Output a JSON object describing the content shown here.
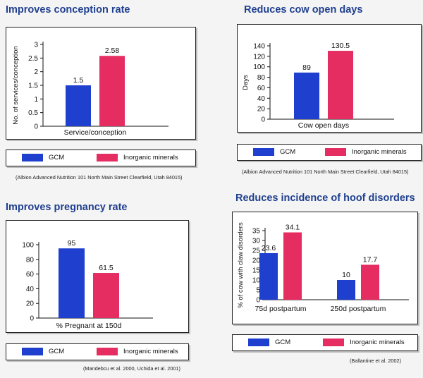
{
  "colors": {
    "gcm": "#1f3fcf",
    "inorganic": "#e52d62"
  },
  "legend": {
    "gcm_label": "GCM",
    "inorganic_label": "Inorganic minerals"
  },
  "credits": {
    "top_left": "(Albion Advanced Nutrition 101 North Main Street Clearfield, Utah 84015)",
    "top_right": "(Albion Advanced Nutrition 101 North Main Street Clearfield, Utah 84015)",
    "bottom_left": "(Mandebcu et al. 2000, Uchida et al. 2001)",
    "bottom_right": "(Ballantine et al. 2002)"
  },
  "chart_data": [
    {
      "type": "bar",
      "title": "Improves conception rate",
      "categories": [
        "Service/conception"
      ],
      "series": [
        {
          "name": "GCM",
          "values": [
            1.5
          ],
          "labels": [
            "1.5"
          ]
        },
        {
          "name": "Inorganic minerals",
          "values": [
            2.58
          ],
          "labels": [
            "2.58"
          ]
        }
      ],
      "xlabel": "",
      "ylabel": "No. of services/conception",
      "ylim": [
        0,
        3
      ],
      "yticks": [
        "0",
        "0.5",
        "1",
        "1.5",
        "2",
        "2.5",
        "3"
      ]
    },
    {
      "type": "bar",
      "title": "Reduces cow open days",
      "categories": [
        "Cow open days"
      ],
      "series": [
        {
          "name": "GCM",
          "values": [
            89
          ],
          "labels": [
            "89"
          ]
        },
        {
          "name": "Inorganic minerals",
          "values": [
            130.5
          ],
          "labels": [
            "130.5"
          ]
        }
      ],
      "xlabel": "",
      "ylabel": "Days",
      "ylim": [
        0,
        140
      ],
      "yticks": [
        "0",
        "20",
        "40",
        "60",
        "80",
        "100",
        "120",
        "140"
      ]
    },
    {
      "type": "bar",
      "title": "Improves pregnancy rate",
      "categories": [
        "% Pregnant at 150d"
      ],
      "series": [
        {
          "name": "GCM",
          "values": [
            95
          ],
          "labels": [
            "95"
          ]
        },
        {
          "name": "Inorganic minerals",
          "values": [
            61.5
          ],
          "labels": [
            "61.5"
          ]
        }
      ],
      "xlabel": "",
      "ylabel": "",
      "ylim": [
        0,
        100
      ],
      "yticks": [
        "0",
        "20",
        "40",
        "60",
        "80",
        "100"
      ]
    },
    {
      "type": "bar",
      "title": "Reduces incidence of hoof disorders",
      "categories": [
        "75d postpartum",
        "250d postpartum"
      ],
      "series": [
        {
          "name": "GCM",
          "values": [
            23.6,
            10
          ],
          "labels": [
            "23.6",
            "10"
          ]
        },
        {
          "name": "Inorganic minerals",
          "values": [
            34.1,
            17.7
          ],
          "labels": [
            "34.1",
            "17.7"
          ]
        }
      ],
      "xlabel": "",
      "ylabel": "% of cow with claw disorders",
      "ylim": [
        0,
        35
      ],
      "yticks": [
        "0",
        "5",
        "10",
        "15",
        "20",
        "25",
        "30",
        "35"
      ]
    }
  ]
}
